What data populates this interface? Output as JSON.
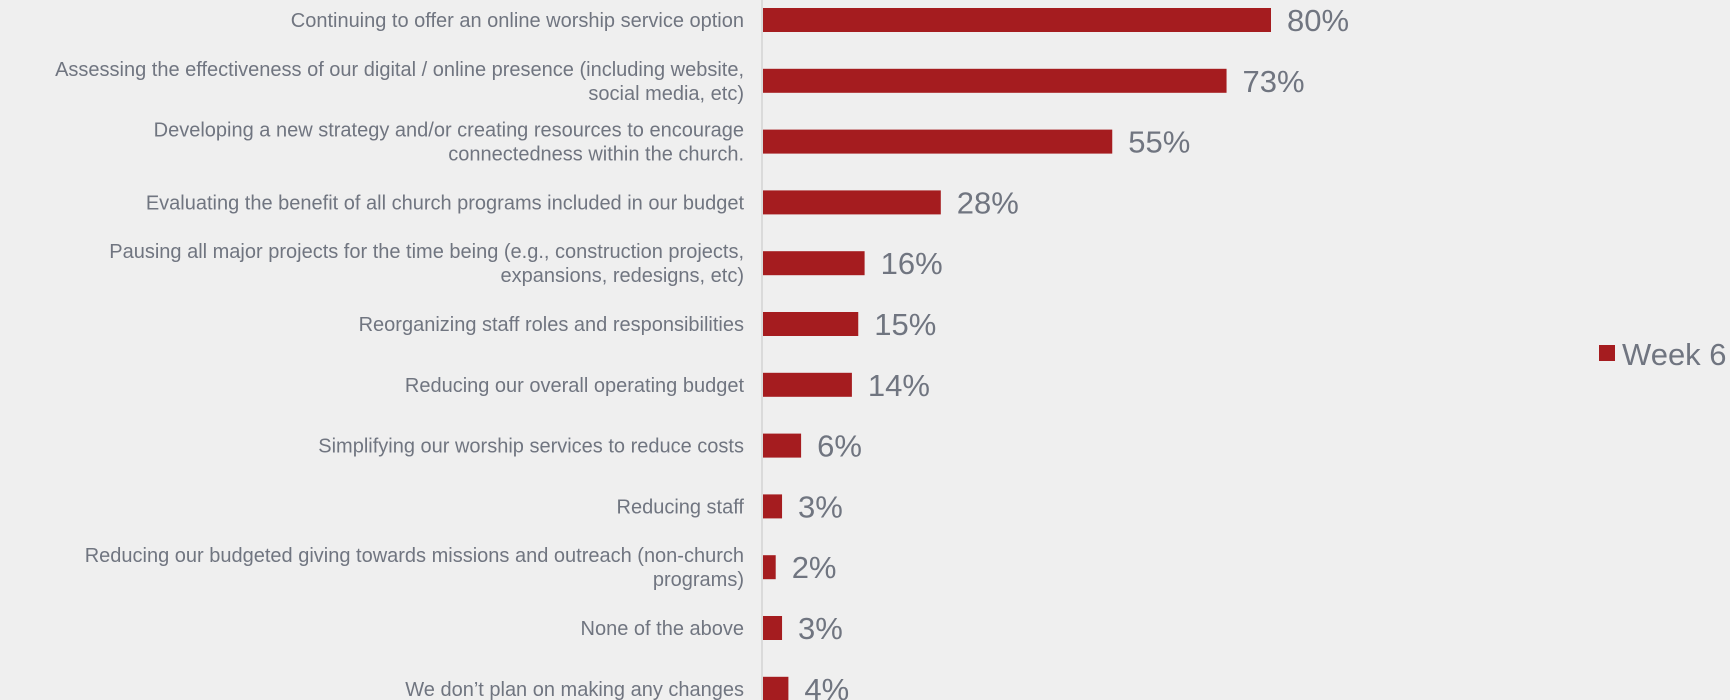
{
  "chart_data": {
    "type": "bar",
    "orientation": "horizontal",
    "categories": [
      "Continuing to offer an online worship service option",
      "Assessing the effectiveness of our digital / online presence (including website, social media, etc)",
      "Developing a new strategy and/or creating resources to encourage connectedness within the church.",
      "Evaluating the benefit of all church programs included in our budget",
      "Pausing all major projects for the time being (e.g., construction projects, expansions, redesigns, etc)",
      "Reorganizing staff roles and responsibilities",
      "Reducing our overall operating budget",
      "Simplifying our worship services to reduce costs",
      "Reducing staff",
      "Reducing our budgeted giving towards missions and outreach (non-church programs)",
      "None of the above",
      "We don’t plan on making any changes"
    ],
    "category_lines": [
      [
        "Continuing to offer an online worship service option"
      ],
      [
        "Assessing the effectiveness of our digital / online presence (including website,",
        "social media, etc)"
      ],
      [
        "Developing a new strategy and/or creating resources to encourage",
        "connectedness within the church."
      ],
      [
        "Evaluating the benefit of all church programs included in our budget"
      ],
      [
        "Pausing all major projects for the time being (e.g., construction projects,",
        "expansions, redesigns, etc)"
      ],
      [
        "Reorganizing staff roles and responsibilities"
      ],
      [
        "Reducing our overall operating budget"
      ],
      [
        "Simplifying our worship services to reduce costs"
      ],
      [
        "Reducing staff"
      ],
      [
        "Reducing our budgeted giving towards missions and outreach (non-church",
        "programs)"
      ],
      [
        "None of the above"
      ],
      [
        "We don’t plan on making any changes"
      ]
    ],
    "series": [
      {
        "name": "Week 6",
        "color": "#a51c1f",
        "values": [
          80,
          73,
          55,
          28,
          16,
          15,
          14,
          6,
          3,
          2,
          3,
          4
        ],
        "labels": [
          "80%",
          "73%",
          "55%",
          "28%",
          "16%",
          "15%",
          "14%",
          "6%",
          "3%",
          "2%",
          "3%",
          "4%"
        ]
      }
    ],
    "value_unit": "%",
    "xlim": [
      0,
      100
    ],
    "title": "",
    "xlabel": "",
    "ylabel": "",
    "grid": false,
    "legend_position": "right"
  }
}
